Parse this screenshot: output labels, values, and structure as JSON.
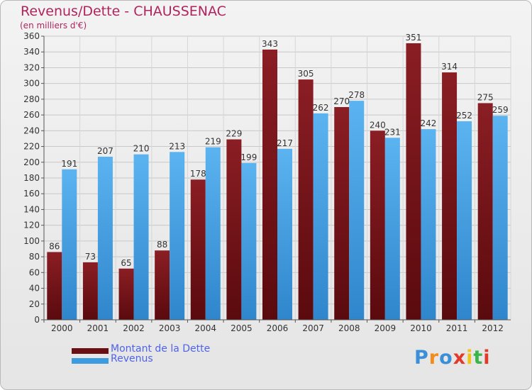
{
  "header": {
    "title": "Revenus/Dette - CHAUSSENAC",
    "subtitle": "(en milliers d'€)"
  },
  "legend": [
    {
      "label": "Montant de la Dette",
      "color": "#7a1418"
    },
    {
      "label": "Revenus",
      "color": "#3d9be0"
    }
  ],
  "logo": {
    "text": "Proxiti",
    "letters": [
      "P",
      "r",
      "o",
      "x",
      "i",
      "t",
      "i"
    ],
    "colors": [
      "#3a8fd8",
      "#f28c1a",
      "#3a8fd8",
      "#e23a2a",
      "#f2c21a",
      "#3ab54a",
      "#e23a2a"
    ]
  },
  "chart_data": {
    "type": "bar",
    "categories": [
      "2000",
      "2001",
      "2002",
      "2003",
      "2004",
      "2005",
      "2006",
      "2007",
      "2008",
      "2009",
      "2010",
      "2011",
      "2012"
    ],
    "series": [
      {
        "name": "Montant de la Dette",
        "values": [
          86,
          73,
          65,
          88,
          178,
          229,
          343,
          305,
          270,
          240,
          351,
          314,
          275
        ],
        "color": "#7a1418"
      },
      {
        "name": "Revenus",
        "values": [
          191,
          207,
          210,
          213,
          219,
          199,
          217,
          262,
          278,
          231,
          242,
          252,
          259
        ],
        "color": "#3d9be0"
      }
    ],
    "ylim": [
      0,
      360
    ],
    "yticks": [
      0,
      20,
      40,
      60,
      80,
      100,
      120,
      140,
      160,
      180,
      200,
      220,
      240,
      260,
      280,
      300,
      320,
      340,
      360
    ],
    "grid": true,
    "legend_position": "bottom-left",
    "title": "Revenus/Dette - CHAUSSENAC",
    "ylabel": "(en milliers d'€)"
  }
}
